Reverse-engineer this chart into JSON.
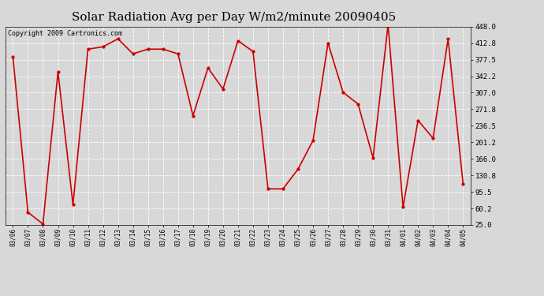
{
  "title": "Solar Radiation Avg per Day W/m2/minute 20090405",
  "copyright": "Copyright 2009 Cartronics.com",
  "dates": [
    "03/06",
    "03/07",
    "03/08",
    "03/09",
    "03/10",
    "03/11",
    "03/12",
    "03/13",
    "03/14",
    "03/15",
    "03/16",
    "03/17",
    "03/18",
    "03/19",
    "03/20",
    "03/21",
    "03/22",
    "03/23",
    "03/24",
    "03/25",
    "03/26",
    "03/27",
    "03/28",
    "03/29",
    "03/30",
    "03/31",
    "04/01",
    "04/02",
    "04/03",
    "04/04",
    "04/05"
  ],
  "values": [
    383,
    52,
    27,
    352,
    68,
    400,
    405,
    422,
    390,
    400,
    400,
    390,
    258,
    360,
    315,
    418,
    395,
    102,
    102,
    144,
    205,
    413,
    308,
    283,
    168,
    452,
    63,
    248,
    210,
    422,
    113
  ],
  "line_color": "#cc0000",
  "marker_color": "#cc0000",
  "bg_color": "#d8d8d8",
  "plot_bg_color": "#d8d8d8",
  "grid_color": "#ffffff",
  "title_fontsize": 11,
  "copyright_fontsize": 6,
  "ylim_min": 25.0,
  "ylim_max": 448.0,
  "yticks": [
    25.0,
    60.2,
    95.5,
    130.8,
    166.0,
    201.2,
    236.5,
    271.8,
    307.0,
    342.2,
    377.5,
    412.8,
    448.0
  ]
}
